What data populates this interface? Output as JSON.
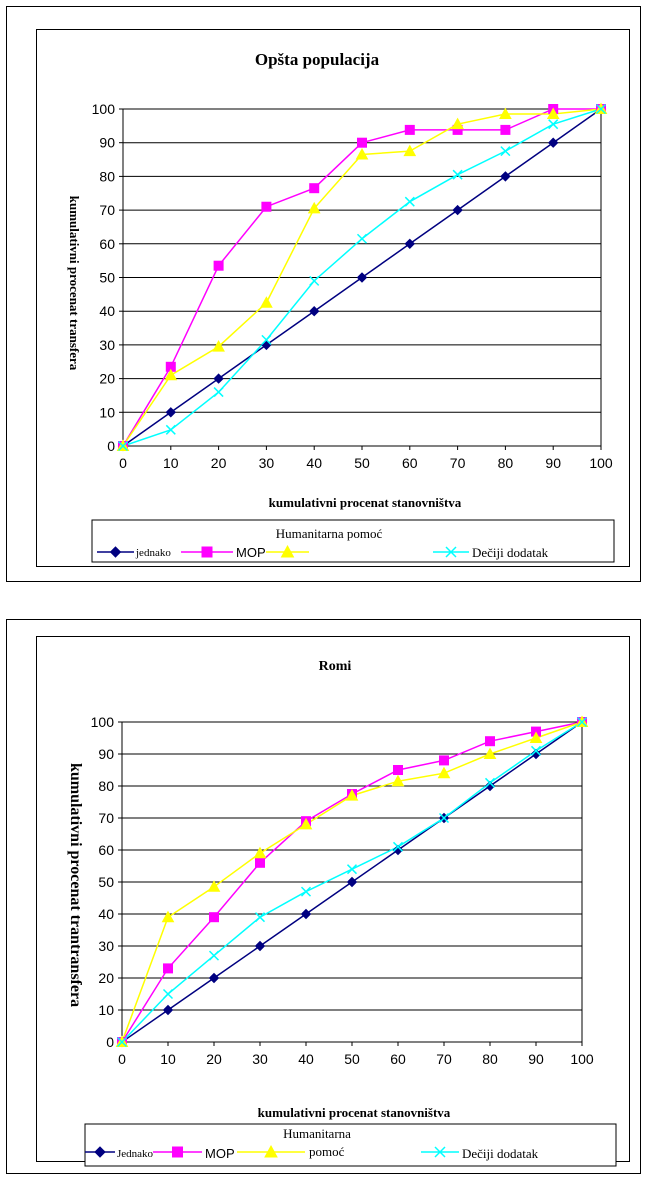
{
  "chart_data": [
    {
      "type": "line",
      "title": "Opšta populacija",
      "xlabel": "kumulativni procenat stanovništva",
      "ylabel": "kumulativni procenat transfera",
      "x": [
        0,
        10,
        20,
        30,
        40,
        50,
        60,
        70,
        80,
        90,
        100
      ],
      "xlim": [
        0,
        100
      ],
      "ylim": [
        0,
        100
      ],
      "y_ticks": [
        0,
        10,
        20,
        30,
        40,
        50,
        60,
        70,
        80,
        90,
        100
      ],
      "x_ticks": [
        0,
        10,
        20,
        30,
        40,
        50,
        60,
        70,
        80,
        90,
        100
      ],
      "grid": "horizontal",
      "legend_position": "bottom",
      "legend_caption": "Humanitarna pomoć",
      "series": [
        {
          "name": "jednako",
          "color": "#000080",
          "marker": "diamond",
          "values": [
            0,
            10,
            20,
            30,
            40,
            50,
            60,
            70,
            80,
            90,
            100
          ]
        },
        {
          "name": "MOP",
          "color": "#ff00ff",
          "marker": "square",
          "values": [
            0,
            23.5,
            53.5,
            71,
            76.5,
            90,
            93.8,
            93.8,
            93.8,
            100,
            100
          ]
        },
        {
          "name": "",
          "color": "#ffff00",
          "marker": "triangle",
          "values": [
            0,
            21,
            29.5,
            42.5,
            70.5,
            86.5,
            87.5,
            95.5,
            98.5,
            98.5,
            100
          ]
        },
        {
          "name": "Dečiji dodatak",
          "color": "#00ffff",
          "marker": "x",
          "values": [
            0,
            4.8,
            16,
            31.5,
            49,
            61.5,
            72.5,
            80.5,
            87.5,
            95.5,
            100
          ]
        }
      ]
    },
    {
      "type": "line",
      "title": "Romi",
      "xlabel": "kumulativni procenat stanovništva",
      "ylabel": "kumulativni procenat trantransfera",
      "x": [
        0,
        10,
        20,
        30,
        40,
        50,
        60,
        70,
        80,
        90,
        100
      ],
      "xlim": [
        0,
        100
      ],
      "ylim": [
        0,
        100
      ],
      "y_ticks": [
        0,
        10,
        20,
        30,
        40,
        50,
        60,
        70,
        80,
        90,
        100
      ],
      "x_ticks": [
        0,
        10,
        20,
        30,
        40,
        50,
        60,
        70,
        80,
        90,
        100
      ],
      "grid": "horizontal",
      "legend_position": "bottom",
      "legend_caption": "Humanitarna",
      "series": [
        {
          "name": "Jednako",
          "color": "#000080",
          "marker": "diamond",
          "values": [
            0,
            10,
            20,
            30,
            40,
            50,
            60,
            70,
            80,
            90,
            100
          ]
        },
        {
          "name": "MOP",
          "color": "#ff00ff",
          "marker": "square",
          "values": [
            0,
            23,
            39,
            56,
            69,
            77.5,
            85,
            88,
            94,
            97,
            100
          ]
        },
        {
          "name": "pomoć",
          "color": "#ffff00",
          "marker": "triangle",
          "values": [
            0,
            39,
            48.5,
            59,
            68,
            77,
            81.5,
            84,
            90,
            95,
            100
          ]
        },
        {
          "name": "Dečiji dodatak",
          "color": "#00ffff",
          "marker": "x",
          "values": [
            0,
            15,
            27,
            39,
            47,
            54,
            61,
            70,
            81,
            91,
            100
          ]
        }
      ]
    }
  ]
}
